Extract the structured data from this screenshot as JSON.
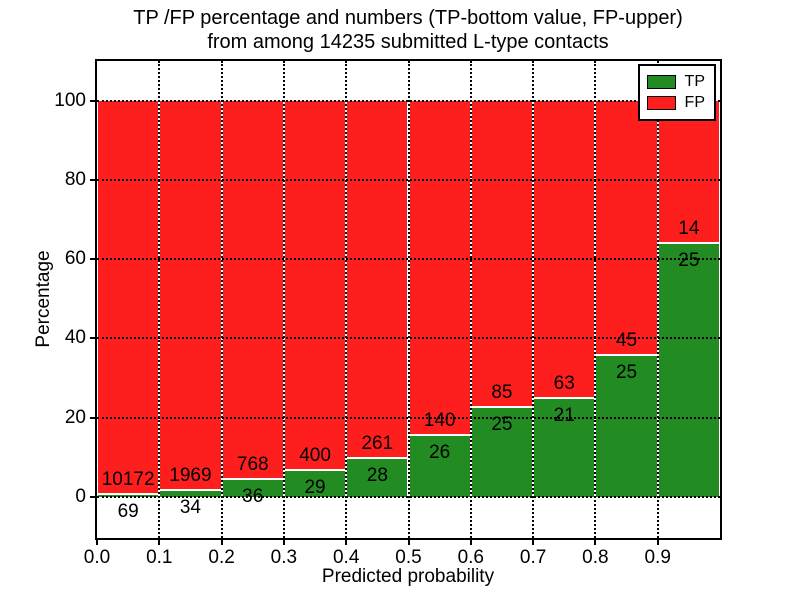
{
  "title": {
    "line1": "TP /FP percentage and numbers (TP-bottom value, FP-upper)",
    "line2": "from among 14235 submitted L-type contacts"
  },
  "chart_data": {
    "type": "bar",
    "stacked": true,
    "normalization": "each bar stacked to 100%, labels show raw counts (TP bottom, FP upper)",
    "bin_edges": [
      0.0,
      0.1,
      0.2,
      0.3,
      0.4,
      0.5,
      0.6,
      0.7,
      0.8,
      0.9,
      1.0
    ],
    "series": [
      {
        "name": "TP",
        "color": "#228b22",
        "counts": [
          69,
          34,
          36,
          29,
          28,
          26,
          25,
          21,
          25,
          25
        ]
      },
      {
        "name": "FP",
        "color": "#ff1e1e",
        "counts": [
          10172,
          1969,
          768,
          400,
          261,
          140,
          85,
          63,
          45,
          14
        ]
      }
    ],
    "xlabel": "Predicted probability",
    "ylabel": "Percentage",
    "xlim": [
      0,
      1
    ],
    "ylim": [
      -10.4,
      110
    ],
    "xtick_values": [
      0.0,
      0.1,
      0.2,
      0.3,
      0.4,
      0.5,
      0.6,
      0.7,
      0.8,
      0.9
    ],
    "xtick_labels": [
      "0.0",
      "0.1",
      "0.2",
      "0.3",
      "0.4",
      "0.5",
      "0.6",
      "0.7",
      "0.8",
      "0.9"
    ],
    "ytick_values": [
      0,
      20,
      40,
      60,
      80,
      100
    ],
    "ytick_labels": [
      "0",
      "20",
      "40",
      "60",
      "80",
      "100"
    ],
    "grid": true,
    "legend": {
      "position": "upper right",
      "entries": [
        {
          "label": "TP",
          "color": "#228b22"
        },
        {
          "label": "FP",
          "color": "#ff1e1e"
        }
      ]
    }
  }
}
